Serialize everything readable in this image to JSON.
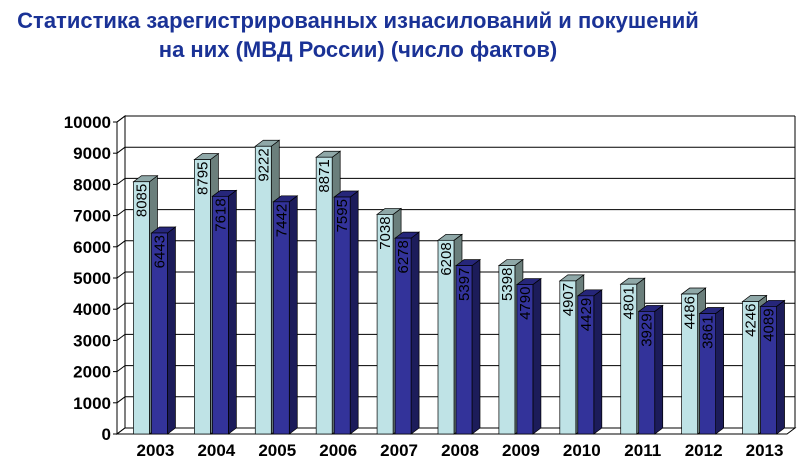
{
  "chart_data": {
    "type": "bar",
    "title": "Статистика зарегистрированных изнасилований и покушений на них (МВД России) (число фактов)",
    "categories": [
      "2003",
      "2004",
      "2005",
      "2006",
      "2007",
      "2008",
      "2009",
      "2010",
      "2011",
      "2012",
      "2013"
    ],
    "series": [
      {
        "values": [
          8085,
          8795,
          9222,
          8871,
          7038,
          6208,
          5398,
          4907,
          4801,
          4486,
          4246
        ],
        "color": "#bfe3e6"
      },
      {
        "values": [
          6443,
          7618,
          7442,
          7595,
          6278,
          5397,
          4790,
          4429,
          3929,
          3861,
          4089
        ],
        "color": "#33339a"
      }
    ],
    "ylim": [
      0,
      10000
    ],
    "yticks": [
      0,
      1000,
      2000,
      3000,
      4000,
      5000,
      6000,
      7000,
      8000,
      9000,
      10000
    ],
    "grid": true,
    "style": "3d-bar"
  }
}
